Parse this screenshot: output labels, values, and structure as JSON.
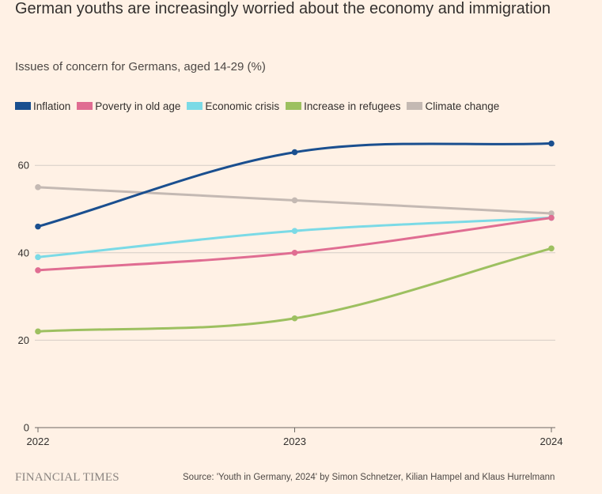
{
  "header": {
    "title": "German youths are increasingly worried about the economy and immigration",
    "subtitle": "Issues of concern for Germans, aged 14-29 (%)"
  },
  "footer": {
    "brand": "FINANCIAL TIMES",
    "source": "Source: 'Youth in Germany, 2024' by Simon Schnetzer, Kilian Hampel and Klaus Hurrelmann"
  },
  "chart_data": {
    "type": "line",
    "title": "German youths are increasingly worried about the economy and immigration",
    "subtitle": "Issues of concern for Germans, aged 14-29 (%)",
    "x": [
      "2022",
      "2023",
      "2024"
    ],
    "ylim": [
      0,
      65
    ],
    "yticks": [
      0,
      20,
      40,
      60
    ],
    "grid": true,
    "legend_position": "top-left",
    "series": [
      {
        "name": "Inflation",
        "color": "#1A4F8F",
        "values": [
          46,
          63,
          65
        ]
      },
      {
        "name": "Poverty in old age",
        "color": "#E06D92",
        "values": [
          36,
          40,
          48
        ]
      },
      {
        "name": "Economic crisis",
        "color": "#7BDAE6",
        "values": [
          39,
          45,
          48
        ]
      },
      {
        "name": "Increase in refugees",
        "color": "#9DC060",
        "values": [
          22,
          25,
          41
        ]
      },
      {
        "name": "Climate change",
        "color": "#C4B9B3",
        "values": [
          55,
          52,
          49
        ]
      }
    ]
  }
}
